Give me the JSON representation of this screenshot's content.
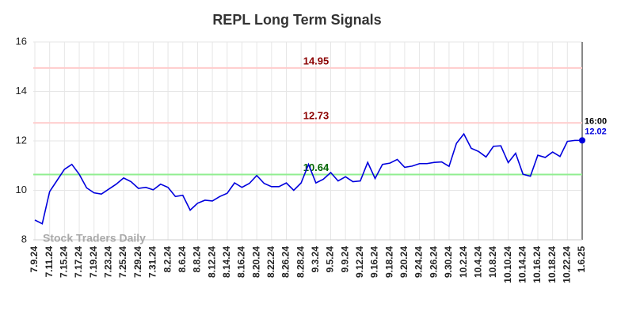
{
  "chart_data": {
    "type": "line",
    "title": "REPL Long Term Signals",
    "categories": [
      "7.9.24",
      null,
      "7.11.24",
      null,
      "7.15.24",
      null,
      "7.17.24",
      null,
      "7.19.24",
      null,
      "7.23.24",
      null,
      "7.25.24",
      null,
      "7.29.24",
      null,
      "7.31.24",
      null,
      "8.2.24",
      null,
      "8.6.24",
      null,
      "8.8.24",
      null,
      "8.12.24",
      null,
      "8.14.24",
      null,
      "8.16.24",
      null,
      "8.20.24",
      null,
      "8.22.24",
      null,
      "8.26.24",
      null,
      "8.28.24",
      null,
      "9.3.24",
      null,
      "9.5.24",
      null,
      "9.9.24",
      null,
      "9.12.24",
      null,
      "9.16.24",
      null,
      "9.18.24",
      null,
      "9.20.24",
      null,
      "9.24.24",
      null,
      "9.26.24",
      null,
      "9.30.24",
      null,
      "10.2.24",
      null,
      "10.4.24",
      null,
      "10.8.24",
      null,
      "10.10.24",
      null,
      "10.14.24",
      null,
      "10.16.24",
      null,
      "10.18.24",
      null,
      "10.22.24",
      null,
      "1.6.25"
    ],
    "series": [
      {
        "name": "REPL",
        "color": "#0000dd",
        "values": [
          8.8,
          8.65,
          9.95,
          10.4,
          10.85,
          11.05,
          10.65,
          10.1,
          9.9,
          9.85,
          10.05,
          10.25,
          10.5,
          10.35,
          10.08,
          10.12,
          10.02,
          10.25,
          10.12,
          9.75,
          9.8,
          9.2,
          9.48,
          9.6,
          9.57,
          9.75,
          9.88,
          10.3,
          10.12,
          10.28,
          10.6,
          10.28,
          10.15,
          10.15,
          10.3,
          10.0,
          10.3,
          11.05,
          10.3,
          10.45,
          10.72,
          10.38,
          10.55,
          10.35,
          10.38,
          11.13,
          10.48,
          11.05,
          11.1,
          11.25,
          10.93,
          10.98,
          11.08,
          11.08,
          11.13,
          11.15,
          10.97,
          11.9,
          12.28,
          11.7,
          11.57,
          11.35,
          11.78,
          11.8,
          11.12,
          11.5,
          10.65,
          10.57,
          11.42,
          11.33,
          11.55,
          11.37,
          11.98,
          12.02,
          12.02
        ]
      }
    ],
    "hlines": [
      {
        "value": 14.95,
        "color": "#ffcccc",
        "label_color": "#8b0000"
      },
      {
        "value": 12.73,
        "color": "#ffcccc",
        "label_color": "#8b0000"
      },
      {
        "value": 10.64,
        "color": "#90ee90",
        "label_color": "#006400"
      }
    ],
    "last_time": "16:00",
    "watermark": "Stock Traders Daily",
    "ylim": [
      8,
      16
    ],
    "yticks": [
      8,
      10,
      12,
      14,
      16
    ],
    "grid": true
  }
}
